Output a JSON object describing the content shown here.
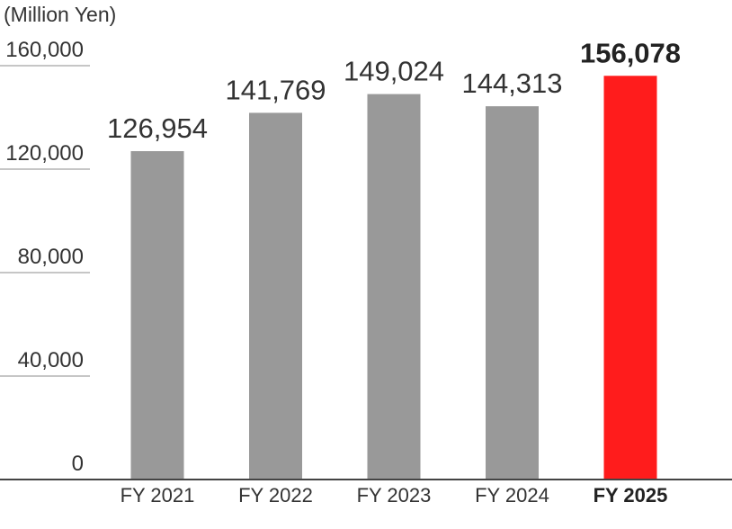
{
  "chart_data": {
    "type": "bar",
    "unit_label": "(Million Yen)",
    "title": "",
    "xlabel": "",
    "ylabel": "",
    "categories": [
      "FY 2021",
      "FY 2022",
      "FY 2023",
      "FY 2024",
      "FY 2025"
    ],
    "values": [
      126954,
      141769,
      149024,
      144313,
      156078
    ],
    "value_labels": [
      "126,954",
      "141,769",
      "149,024",
      "144,313",
      "156,078"
    ],
    "highlight_index": 4,
    "ylim": [
      0,
      160000
    ],
    "yticks": [
      0,
      40000,
      80000,
      120000,
      160000
    ],
    "ytick_labels": [
      "0",
      "40,000",
      "80,000",
      "120,000",
      "160,000"
    ],
    "grid": true,
    "colors": {
      "bar": "#999999",
      "highlight": "#ff1c1c"
    }
  }
}
